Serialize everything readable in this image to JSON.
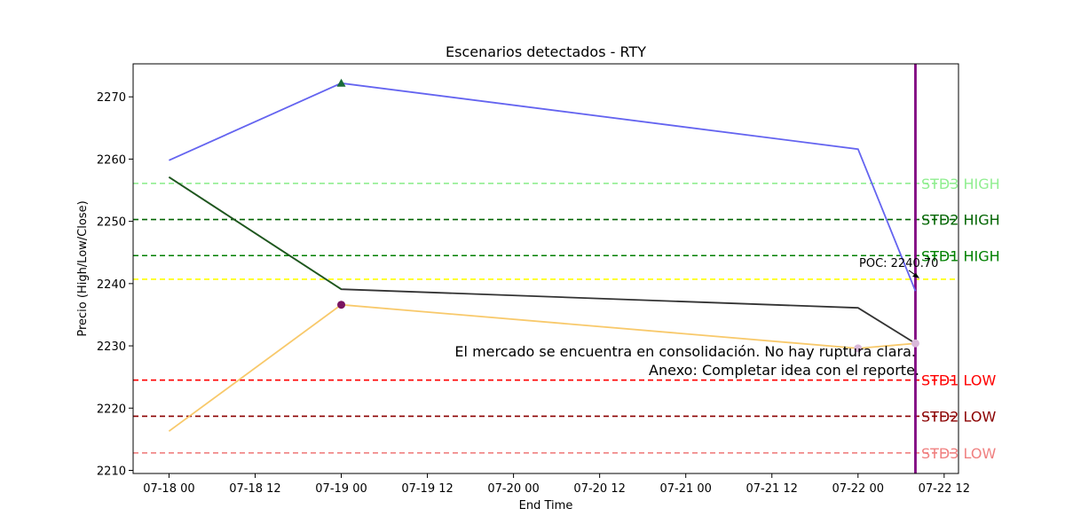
{
  "chart_data": {
    "type": "line",
    "title": "Escenarios detectados - RTY",
    "xlabel": "End Time",
    "ylabel": "Precio (High/Low/Close)",
    "xlim": [
      "2024-07-17T19:00",
      "2024-07-22T14:00"
    ],
    "ylim": [
      2209.5,
      2275.3
    ],
    "x_ticks": [
      {
        "x": "2024-07-18T00:00",
        "label": "07-18 00"
      },
      {
        "x": "2024-07-18T12:00",
        "label": "07-18 12"
      },
      {
        "x": "2024-07-19T00:00",
        "label": "07-19 00"
      },
      {
        "x": "2024-07-19T12:00",
        "label": "07-19 12"
      },
      {
        "x": "2024-07-20T00:00",
        "label": "07-20 00"
      },
      {
        "x": "2024-07-20T12:00",
        "label": "07-20 12"
      },
      {
        "x": "2024-07-21T00:00",
        "label": "07-21 00"
      },
      {
        "x": "2024-07-21T12:00",
        "label": "07-21 12"
      },
      {
        "x": "2024-07-22T00:00",
        "label": "07-22 00"
      },
      {
        "x": "2024-07-22T12:00",
        "label": "07-22 12"
      }
    ],
    "y_ticks": [
      2210,
      2220,
      2230,
      2240,
      2250,
      2260,
      2270
    ],
    "x": [
      "2024-07-18T00:00",
      "2024-07-19T00:00",
      "2024-07-22T00:00",
      "2024-07-22T08:00"
    ],
    "series": [
      {
        "key": "high",
        "color": "#6464f0",
        "values": [
          2259.8,
          2272.2,
          2261.6,
          2238.8
        ]
      },
      {
        "key": "close",
        "color": "#333333",
        "values": [
          2257.1,
          2239.1,
          2236.1,
          2230.4
        ]
      },
      {
        "key": "low",
        "color": "#f8c96b",
        "values": [
          2216.3,
          2236.6,
          2229.6,
          2230.4
        ]
      }
    ],
    "overlap_segment": {
      "color": "#1e5a1e",
      "from": {
        "x": "2024-07-18T00:00",
        "y": 2257.1
      },
      "to": {
        "x": "2024-07-19T00:00",
        "y": 2239.1
      }
    },
    "markers": [
      {
        "x": "2024-07-19T00:00",
        "y": 2272.2,
        "shape": "triangle",
        "color": "#1a6b3a"
      },
      {
        "x": "2024-07-19T00:00",
        "y": 2236.6,
        "shape": "circle",
        "color": "#7a1460"
      },
      {
        "x": "2024-07-22T00:00",
        "y": 2229.6,
        "shape": "circle",
        "color": "#d9b8d9"
      },
      {
        "x": "2024-07-22T08:00",
        "y": 2230.4,
        "shape": "circle",
        "color": "#d9b8d9"
      }
    ],
    "vertical_line": {
      "x": "2024-07-22T08:00",
      "color": "#800080"
    },
    "levels": [
      {
        "label": "STD3 HIGH",
        "y": 2256.1,
        "color": "#90ee90"
      },
      {
        "label": "STD2 HIGH",
        "y": 2250.3,
        "color": "#006400"
      },
      {
        "label": "STD1 HIGH",
        "y": 2244.5,
        "color": "#008000"
      },
      {
        "label": "",
        "y": 2240.7,
        "color": "#ffff00"
      },
      {
        "label": "STD1 LOW",
        "y": 2224.5,
        "color": "#ff0000"
      },
      {
        "label": "STD2 LOW",
        "y": 2218.7,
        "color": "#8b0000"
      },
      {
        "label": "STD3 LOW",
        "y": 2212.8,
        "color": "#f08080"
      }
    ],
    "poc": {
      "text": "POC: 2240.70",
      "y": 2240.7
    },
    "annotation": [
      "El mercado se encuentra en consolidación. No hay ruptura clara.",
      "Anexo: Completar idea con el reporte."
    ],
    "legend": "none",
    "grid": false
  }
}
